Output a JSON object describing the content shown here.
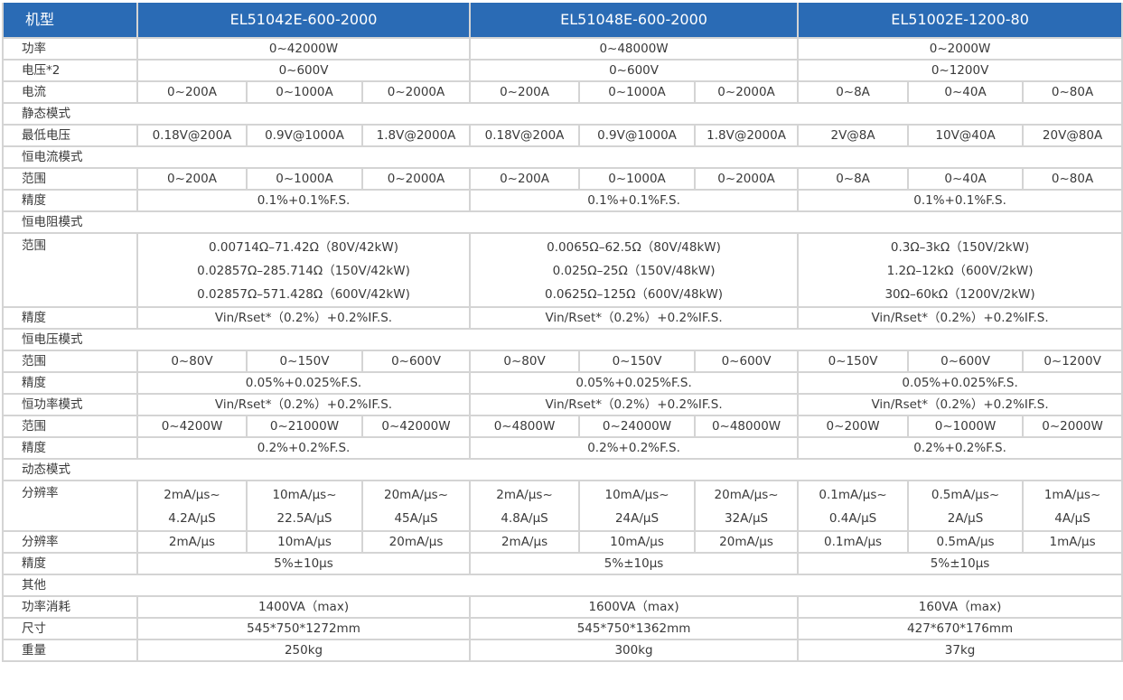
{
  "header": {
    "label": "机型",
    "models": [
      "EL51042E-600-2000",
      "EL51048E-600-2000",
      "EL51002E-1200-80"
    ]
  },
  "colors": {
    "header_bg": "#2a6bb5",
    "border": "#d4d4d4",
    "text": "#3a3a3a"
  },
  "rows": [
    {
      "label": "功率",
      "type": "span",
      "values": [
        "0~42000W",
        "0~48000W",
        "0~2000W"
      ]
    },
    {
      "label": "电压*2",
      "type": "span",
      "values": [
        "0~600V",
        "0~600V",
        "0~1200V"
      ]
    },
    {
      "label": "电流",
      "type": "split",
      "values": [
        "0~200A",
        "0~1000A",
        "0~2000A",
        "0~200A",
        "0~1000A",
        "0~2000A",
        "0~8A",
        "0~40A",
        "0~80A"
      ]
    },
    {
      "label": "静态模式",
      "type": "section"
    },
    {
      "label": "最低电压",
      "type": "split",
      "values": [
        "0.18V@200A",
        "0.9V@1000A",
        "1.8V@2000A",
        "0.18V@200A",
        "0.9V@1000A",
        "1.8V@2000A",
        "2V@8A",
        "10V@40A",
        "20V@80A"
      ]
    },
    {
      "label": "恒电流模式",
      "type": "section"
    },
    {
      "label": "范围",
      "type": "split",
      "values": [
        "0~200A",
        "0~1000A",
        "0~2000A",
        "0~200A",
        "0~1000A",
        "0~2000A",
        "0~8A",
        "0~40A",
        "0~80A"
      ]
    },
    {
      "label": "精度",
      "type": "span",
      "values": [
        "0.1%+0.1%F.S.",
        "0.1%+0.1%F.S.",
        "0.1%+0.1%F.S."
      ]
    },
    {
      "label": "恒电阻模式",
      "type": "section"
    },
    {
      "label": "范围",
      "type": "span",
      "multi": true,
      "values": [
        [
          "0.00714Ω–71.42Ω（80V/42kW)",
          "0.02857Ω–285.714Ω（150V/42kW)",
          "0.02857Ω–571.428Ω（600V/42kW)"
        ],
        [
          "0.0065Ω–62.5Ω（80V/48kW)",
          "0.025Ω–25Ω（150V/48kW)",
          "0.0625Ω–125Ω（600V/48kW)"
        ],
        [
          "0.3Ω–3kΩ（150V/2kW)",
          "1.2Ω–12kΩ（600V/2kW)",
          "30Ω–60kΩ（1200V/2kW)"
        ]
      ]
    },
    {
      "label": "精度",
      "type": "span",
      "values": [
        "Vin/Rset*（0.2%）+0.2%IF.S.",
        "Vin/Rset*（0.2%）+0.2%IF.S.",
        "Vin/Rset*（0.2%）+0.2%IF.S."
      ]
    },
    {
      "label": "恒电压模式",
      "type": "section"
    },
    {
      "label": "范围",
      "type": "split",
      "values": [
        "0~80V",
        "0~150V",
        "0~600V",
        "0~80V",
        "0~150V",
        "0~600V",
        "0~150V",
        "0~600V",
        "0~1200V"
      ]
    },
    {
      "label": "精度",
      "type": "span",
      "values": [
        "0.05%+0.025%F.S.",
        "0.05%+0.025%F.S.",
        "0.05%+0.025%F.S."
      ]
    },
    {
      "label": "恒功率模式",
      "type": "span",
      "values": [
        "Vin/Rset*（0.2%）+0.2%IF.S.",
        "Vin/Rset*（0.2%）+0.2%IF.S.",
        "Vin/Rset*（0.2%）+0.2%IF.S."
      ]
    },
    {
      "label": "范围",
      "type": "split",
      "values": [
        "0~4200W",
        "0~21000W",
        "0~42000W",
        "0~4800W",
        "0~24000W",
        "0~48000W",
        "0~200W",
        "0~1000W",
        "0~2000W"
      ]
    },
    {
      "label": "精度",
      "type": "span",
      "values": [
        "0.2%+0.2%F.S.",
        "0.2%+0.2%F.S.",
        "0.2%+0.2%F.S."
      ]
    },
    {
      "label": "动态模式",
      "type": "section"
    },
    {
      "label": "分辨率",
      "type": "split",
      "multi": true,
      "values": [
        [
          "2mA/μs~",
          "4.2A/μS"
        ],
        [
          "10mA/μs~",
          "22.5A/μS"
        ],
        [
          "20mA/μs~",
          "45A/μS"
        ],
        [
          "2mA/μs~",
          "4.8A/μS"
        ],
        [
          "10mA/μs~",
          "24A/μS"
        ],
        [
          "20mA/μs~",
          "32A/μS"
        ],
        [
          "0.1mA/μs~",
          "0.4A/μS"
        ],
        [
          "0.5mA/μs~",
          "2A/μS"
        ],
        [
          "1mA/μs~",
          "4A/μS"
        ]
      ]
    },
    {
      "label": "分辨率",
      "type": "split",
      "values": [
        "2mA/μs",
        "10mA/μs",
        "20mA/μs",
        "2mA/μs",
        "10mA/μs",
        "20mA/μs",
        "0.1mA/μs",
        "0.5mA/μs",
        "1mA/μs"
      ]
    },
    {
      "label": "精度",
      "type": "span",
      "values": [
        "5%±10μs",
        "5%±10μs",
        "5%±10μs"
      ]
    },
    {
      "label": "其他",
      "type": "section"
    },
    {
      "label": "功率消耗",
      "type": "span",
      "values": [
        "1400VA（max)",
        "1600VA（max)",
        "160VA（max)"
      ]
    },
    {
      "label": "尺寸",
      "type": "span",
      "values": [
        "545*750*1272mm",
        "545*750*1362mm",
        "427*670*176mm"
      ]
    },
    {
      "label": "重量",
      "type": "span",
      "values": [
        "250kg",
        "300kg",
        "37kg"
      ]
    }
  ]
}
